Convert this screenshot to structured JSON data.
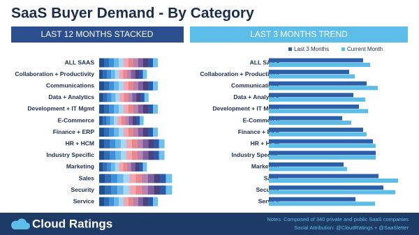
{
  "title": "SaaS Buyer Demand - By Category",
  "footer": {
    "brand": "Cloud Ratings",
    "notes": [
      "Notes: Composed of 340 private and public SaaS companies",
      "Social Attribution: @CloudRatings + @SaaSletter"
    ]
  },
  "chart_data": [
    {
      "type": "stacked_bar",
      "title": "LAST 12 MONTHS STACKED",
      "categories": [
        "ALL SAAS",
        "Collaboration + Productivity",
        "Communications",
        "Data + Analytics",
        "Development + IT Mgmt",
        "E-Commerce",
        "Finance + ERP",
        "HR + HCM",
        "Industry Specific",
        "Marketing",
        "Sales",
        "Security",
        "Service"
      ],
      "xlim": [
        0,
        120
      ],
      "series": [
        {
          "color": "#1f4f8f",
          "values": [
            7,
            5.7,
            7,
            5.9,
            7,
            5.3,
            7,
            7.8,
            7.8,
            5.7,
            8.7,
            8.7,
            7
          ]
        },
        {
          "color": "#2f6db5",
          "values": [
            7,
            5.7,
            7,
            5.9,
            7,
            5.3,
            7,
            7.8,
            7.8,
            5.7,
            8.7,
            8.7,
            7
          ]
        },
        {
          "color": "#3f8fd8",
          "values": [
            7,
            5.7,
            7,
            5.9,
            7,
            5.3,
            7,
            7.8,
            7.8,
            5.7,
            8.7,
            8.7,
            7
          ]
        },
        {
          "color": "#66b6ea",
          "values": [
            7,
            5.7,
            7,
            5.9,
            7,
            5.3,
            7,
            7.8,
            7.8,
            5.7,
            8.7,
            8.7,
            7
          ]
        },
        {
          "color": "#a8d6f2",
          "values": [
            7,
            5.7,
            7,
            5.9,
            7,
            5.3,
            7,
            7.8,
            7.8,
            5.7,
            8.7,
            8.7,
            7
          ]
        },
        {
          "color": "#f4a6b0",
          "values": [
            7,
            5.7,
            7,
            5.9,
            7,
            5.3,
            7,
            7.8,
            7.8,
            5.7,
            8.7,
            8.7,
            7
          ]
        },
        {
          "color": "#e9878f",
          "values": [
            7,
            5.7,
            7,
            5.9,
            7,
            5.3,
            7,
            7.8,
            7.8,
            5.7,
            8.7,
            8.7,
            7
          ]
        },
        {
          "color": "#b982ad",
          "values": [
            7,
            5.7,
            7,
            5.9,
            7,
            5.3,
            7,
            7.8,
            7.8,
            5.7,
            8.7,
            8.7,
            7
          ]
        },
        {
          "color": "#7f5f9e",
          "values": [
            7,
            5.7,
            7,
            5.9,
            7,
            5.3,
            7,
            7.8,
            7.8,
            5.7,
            8.7,
            8.7,
            7
          ]
        },
        {
          "color": "#4a417d",
          "values": [
            7,
            5.7,
            7,
            5.9,
            7,
            5.3,
            7,
            7.8,
            7.8,
            5.7,
            8.7,
            8.7,
            7
          ]
        },
        {
          "color": "#2d5aa6",
          "values": [
            7,
            5.7,
            7,
            5.9,
            7,
            5.3,
            7,
            7.8,
            7.8,
            5.7,
            8.7,
            8.7,
            7
          ]
        },
        {
          "color": "#6fc0ec",
          "values": [
            7,
            5.7,
            7,
            5.9,
            7,
            5.3,
            7,
            7.8,
            7.8,
            5.7,
            8.7,
            8.7,
            7
          ]
        }
      ]
    },
    {
      "type": "grouped_bar",
      "title": "LAST 3 MONTHS TREND",
      "categories": [
        "ALL SAAS",
        "Collaboration + Productivity",
        "Communications",
        "Data + Analytics",
        "Development + IT Mgmt",
        "E-Commerce",
        "Finance + ERP",
        "HR + HCM",
        "Industry Specific",
        "Marketing",
        "Sales",
        "Security",
        "Service"
      ],
      "xlim": [
        0,
        200
      ],
      "legend": "top-right",
      "series": [
        {
          "name": "Last 3 Months",
          "color": "#2c5fa8",
          "values": [
            135,
            115,
            140,
            121,
            129,
            105,
            135,
            149,
            153,
            107,
            157,
            164,
            124
          ]
        },
        {
          "name": "Current Month",
          "color": "#5bbde8",
          "values": [
            145,
            123,
            156,
            138,
            142,
            118,
            140,
            153,
            153,
            112,
            185,
            181,
            152
          ]
        }
      ]
    }
  ]
}
